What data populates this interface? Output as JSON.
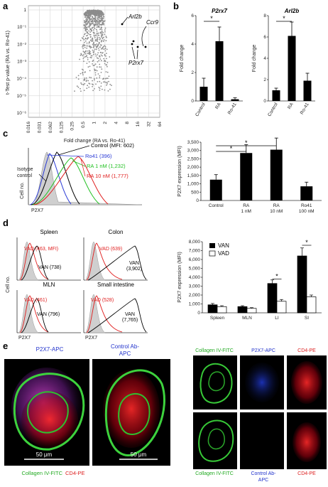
{
  "panels": {
    "a": {
      "label": "a",
      "ylabel": "t-Test p-value (RA vs. Ro-41)",
      "xlabel": "Fold change (RA vs. Ro-41)",
      "xticks": [
        "0.016",
        "0.031",
        "0.062",
        "0.125",
        "0.25",
        "0.5",
        "1",
        "2",
        "4",
        "8",
        "16",
        "32",
        "64"
      ],
      "yticks": [
        "1",
        "10⁻¹",
        "10⁻²",
        "10⁻³",
        "10⁻⁴",
        "10⁻⁵",
        "10⁻⁶"
      ],
      "annotations": [
        "Arl2b",
        "Ccr9",
        "P2rx7"
      ],
      "point_color": "#8c8c8c"
    },
    "b": {
      "label": "b",
      "charts": [
        {
          "title": "P2rx7",
          "ylabel": "Fold change",
          "yticks": [
            "0",
            "2",
            "4",
            "6"
          ],
          "categories": [
            "Control",
            "RA",
            "Ro-41"
          ],
          "values": [
            1.0,
            4.2,
            0.12
          ],
          "errors": [
            0.6,
            1.0,
            0.1
          ],
          "ymax": 6,
          "sig": "*"
        },
        {
          "title": "Arl2b",
          "ylabel": "Fold change",
          "yticks": [
            "0",
            "2",
            "4",
            "6",
            "8"
          ],
          "categories": [
            "Control",
            "RA",
            "Ro-41"
          ],
          "values": [
            1.0,
            6.1,
            1.9
          ],
          "errors": [
            0.2,
            1.3,
            0.7
          ],
          "ymax": 8,
          "sig": "*"
        }
      ]
    },
    "c": {
      "label": "c",
      "hist": {
        "ylabel": "Cell no.",
        "xlabel": "P2X7",
        "legend": [
          {
            "text": "Control (MFI: 602)",
            "color": "#000000"
          },
          {
            "text": "Ro41 (396)",
            "color": "#2b3bd6"
          },
          {
            "text": "RA 1 nM (1,232)",
            "color": "#22c122"
          },
          {
            "text": "RA 10 nM (1,777)",
            "color": "#e02020"
          }
        ],
        "isotype": "Isotype control"
      },
      "bar": {
        "ylabel": "P2X7 expression (MFI)",
        "yticks": [
          "0",
          "500",
          "1,000",
          "1,500",
          "2,000",
          "2,500",
          "3,000",
          "3,500"
        ],
        "categories": [
          [
            "Control",
            ""
          ],
          [
            "RA",
            "1 nM"
          ],
          [
            "RA",
            "10 nM"
          ],
          [
            "Ro41",
            "100 nM"
          ]
        ],
        "values": [
          1250,
          2850,
          3050,
          850
        ],
        "errors": [
          300,
          500,
          700,
          250
        ],
        "ymax": 3500,
        "sig": [
          "*",
          "*"
        ]
      }
    },
    "d": {
      "label": "d",
      "hists": [
        {
          "title": "Spleen",
          "vad": "VAD (463, MFI)",
          "van": "VAN (738)"
        },
        {
          "title": "Colon",
          "vad": "VAD (639)",
          "van": "VAN (3,902)"
        },
        {
          "title": "MLN",
          "vad": "VAD (461)",
          "van": "VAN (796)"
        },
        {
          "title": "Small intestine",
          "vad": "VAD (528)",
          "van": "VAN (7,765)"
        }
      ],
      "ylabel": "Cell no.",
      "xlabel": "P2X7",
      "bar": {
        "ylabel": "P2X7 expression (MFI)",
        "yticks": [
          "0",
          "1,000",
          "2,000",
          "3,000",
          "4,000",
          "5,000",
          "6,000",
          "7,000",
          "8,000"
        ],
        "categories": [
          "Spleen",
          "MLN",
          "LI",
          "SI"
        ],
        "legend": [
          "VAN",
          "VAD"
        ],
        "van": [
          900,
          700,
          3300,
          6400
        ],
        "vad": [
          700,
          500,
          1300,
          1800
        ],
        "van_err": [
          150,
          100,
          400,
          900
        ],
        "vad_err": [
          100,
          80,
          200,
          200
        ],
        "ymax": 8000,
        "sig": [
          "*",
          "*"
        ]
      }
    },
    "e": {
      "label": "e",
      "left_titles": [
        "P2X7-APC",
        "Control Ab-APC"
      ],
      "left_bottom": [
        "Collagen IV-FITC",
        "CD4-PE"
      ],
      "scale": "50 μm",
      "right_top": [
        "Collagen IV-FITC",
        "P2X7-APC",
        "CD4-PE"
      ],
      "right_bottom": [
        "Collagen IV-FITC",
        "Control Ab-APC",
        "CD4-PE"
      ]
    }
  }
}
